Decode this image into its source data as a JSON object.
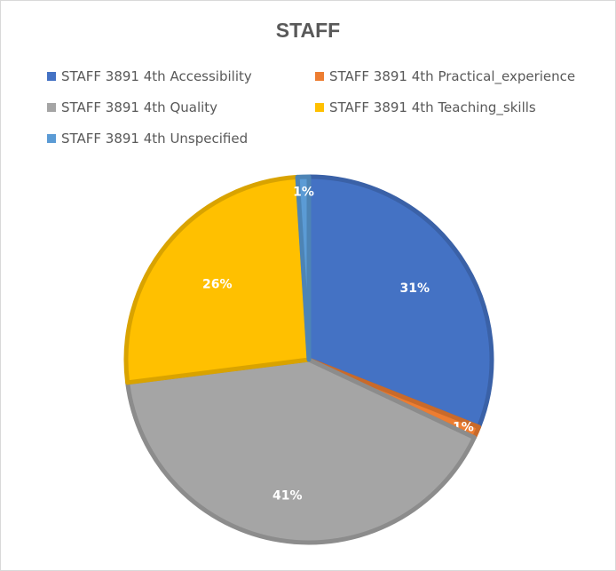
{
  "chart_data": {
    "type": "pie",
    "title": "STAFF",
    "legend_position": "top",
    "series": [
      {
        "name": "STAFF 3891 4th Accessibility",
        "value": 31,
        "label": "31%",
        "color": "#4472C4"
      },
      {
        "name": "STAFF 3891 4th Practical_experience",
        "value": 1,
        "label": "1%",
        "color": "#ED7D31"
      },
      {
        "name": "STAFF 3891 4th Quality",
        "value": 41,
        "label": "41%",
        "color": "#A5A5A5"
      },
      {
        "name": "STAFF 3891 4th Teaching_skills",
        "value": 26,
        "label": "26%",
        "color": "#FFC000"
      },
      {
        "name": "STAFF 3891 4th Unspecified",
        "value": 1,
        "label": "1%",
        "color": "#5B9BD5"
      }
    ]
  }
}
